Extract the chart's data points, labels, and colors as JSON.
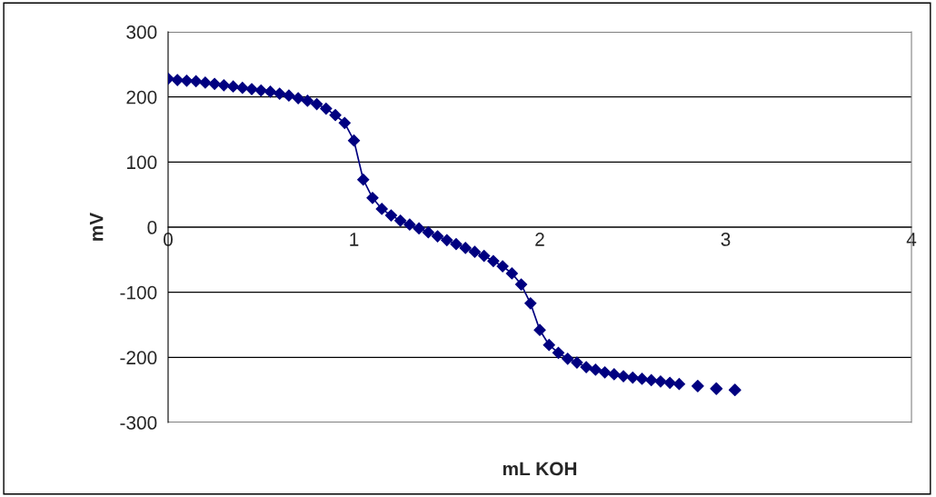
{
  "chart_data": {
    "type": "line",
    "xlabel": "mL KOH",
    "ylabel": "mV",
    "marker": "diamond",
    "line_style": "solid",
    "grid": "y",
    "xlim": [
      0,
      4
    ],
    "xticks": [
      0,
      1,
      2,
      3,
      4
    ],
    "ylim": [
      -300,
      300
    ],
    "yticks": [
      -300,
      -200,
      -100,
      0,
      100,
      200,
      300
    ],
    "series": [
      {
        "color": "#000080",
        "x": [
          0,
          0.05,
          0.1,
          0.15,
          0.2,
          0.25,
          0.3,
          0.35,
          0.4,
          0.45,
          0.5,
          0.55,
          0.6,
          0.65,
          0.7,
          0.75,
          0.8,
          0.85,
          0.9,
          0.95,
          1.0,
          1.05,
          1.1,
          1.15,
          1.2,
          1.25,
          1.3,
          1.35,
          1.4,
          1.45,
          1.5,
          1.55,
          1.6,
          1.65,
          1.7,
          1.75,
          1.8,
          1.85,
          1.9,
          1.95,
          2.0,
          2.05,
          2.1,
          2.15,
          2.2,
          2.25,
          2.3,
          2.35,
          2.4,
          2.45,
          2.5,
          2.55,
          2.6,
          2.65,
          2.7,
          2.75
        ],
        "values": [
          228,
          226,
          225,
          224,
          222,
          220,
          218,
          216,
          214,
          212,
          210,
          208,
          205,
          202,
          198,
          194,
          189,
          182,
          172,
          160,
          133,
          73,
          45,
          28,
          18,
          10,
          4,
          -2,
          -8,
          -14,
          -20,
          -26,
          -32,
          -38,
          -44,
          -52,
          -60,
          -71,
          -88,
          -117,
          -158,
          -181,
          -193,
          -202,
          -208,
          -215,
          -219,
          -223,
          -226,
          -229,
          -231,
          -233,
          -235,
          -237,
          -239,
          -241
        ]
      },
      {
        "type": "scatter",
        "color": "#000080",
        "x": [
          2.85,
          2.95,
          3.05
        ],
        "values": [
          -244,
          -248,
          -250
        ]
      }
    ]
  }
}
